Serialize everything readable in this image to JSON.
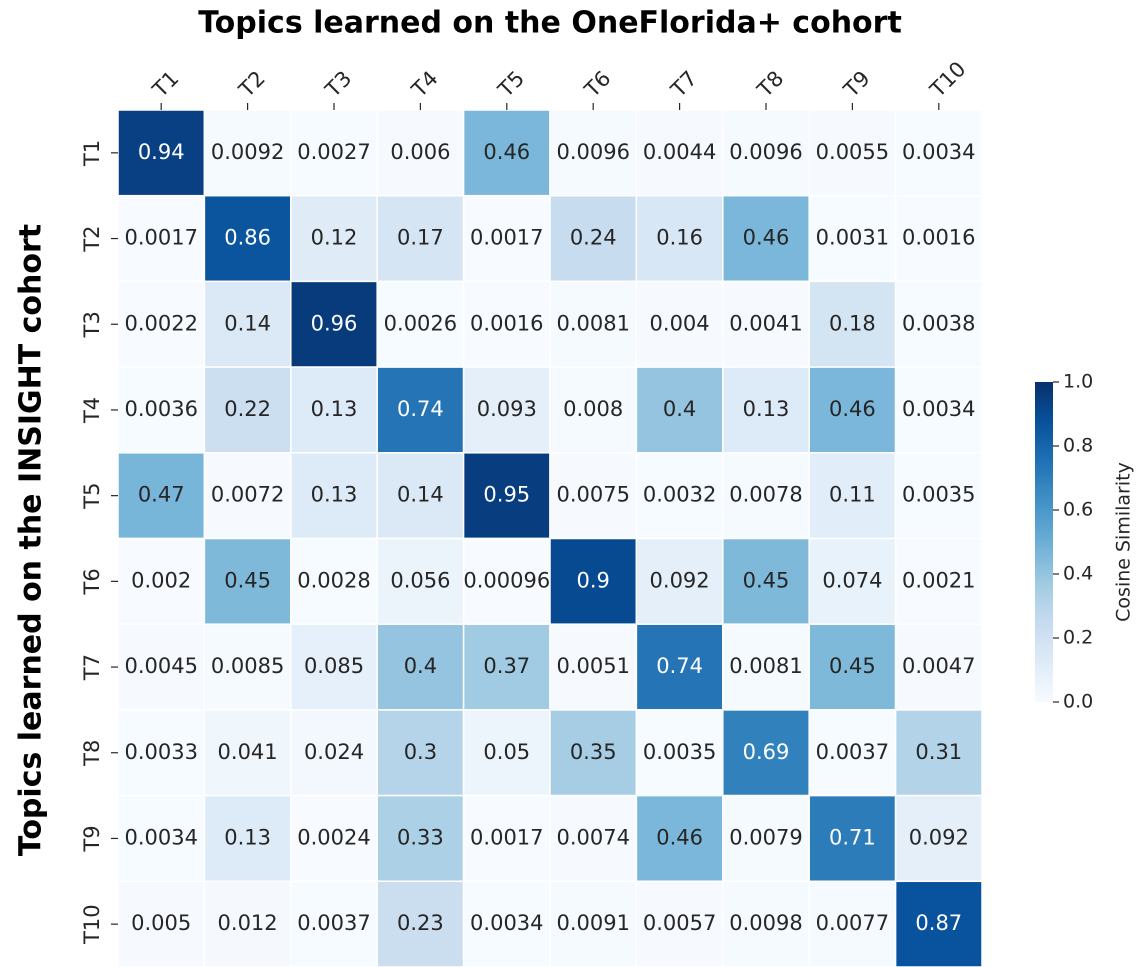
{
  "chart_data": {
    "type": "heatmap",
    "title": "Topics learned on the OneFlorida+ cohort",
    "ylabel": "Topics learned on the INSIGHT cohort",
    "x_categories": [
      "T1",
      "T2",
      "T3",
      "T4",
      "T5",
      "T6",
      "T7",
      "T8",
      "T9",
      "T10"
    ],
    "y_categories": [
      "T1",
      "T2",
      "T3",
      "T4",
      "T5",
      "T6",
      "T7",
      "T8",
      "T9",
      "T10"
    ],
    "values": [
      [
        0.94,
        0.0092,
        0.0027,
        0.006,
        0.46,
        0.0096,
        0.0044,
        0.0096,
        0.0055,
        0.0034
      ],
      [
        0.0017,
        0.86,
        0.12,
        0.17,
        0.0017,
        0.24,
        0.16,
        0.46,
        0.0031,
        0.0016
      ],
      [
        0.0022,
        0.14,
        0.96,
        0.0026,
        0.0016,
        0.0081,
        0.004,
        0.0041,
        0.18,
        0.0038
      ],
      [
        0.0036,
        0.22,
        0.13,
        0.74,
        0.093,
        0.008,
        0.4,
        0.13,
        0.46,
        0.0034
      ],
      [
        0.47,
        0.0072,
        0.13,
        0.14,
        0.95,
        0.0075,
        0.0032,
        0.0078,
        0.11,
        0.0035
      ],
      [
        0.002,
        0.45,
        0.0028,
        0.056,
        0.00096,
        0.9,
        0.092,
        0.45,
        0.074,
        0.0021
      ],
      [
        0.0045,
        0.0085,
        0.085,
        0.4,
        0.37,
        0.0051,
        0.74,
        0.0081,
        0.45,
        0.0047
      ],
      [
        0.0033,
        0.041,
        0.024,
        0.3,
        0.05,
        0.35,
        0.0035,
        0.69,
        0.0037,
        0.31
      ],
      [
        0.0034,
        0.13,
        0.0024,
        0.33,
        0.0017,
        0.0074,
        0.46,
        0.0079,
        0.71,
        0.092
      ],
      [
        0.005,
        0.012,
        0.0037,
        0.23,
        0.0034,
        0.0091,
        0.0057,
        0.0098,
        0.0077,
        0.87
      ]
    ],
    "colormap": "Blues",
    "colorbar_label": "Cosine Similarity",
    "zlim": [
      0,
      1
    ],
    "zticks": [
      {
        "value": 0,
        "label": "0.0"
      },
      0.2,
      0.4,
      0.6,
      0.8,
      {
        "value": 1,
        "label": "1.0"
      }
    ]
  }
}
